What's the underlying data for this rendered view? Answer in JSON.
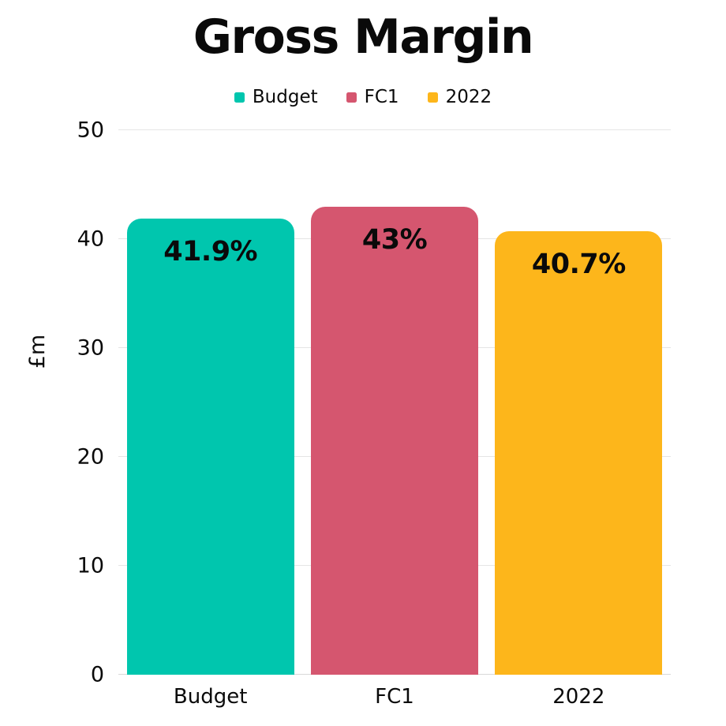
{
  "title": "Gross Margin",
  "colors": {
    "teal": "#00C6AE",
    "pink": "#D5566F",
    "yellow": "#FDB61B",
    "grid": "#E5E5E5",
    "baseline": "#D9D9D9",
    "text": "#0A0A0A",
    "background": "#FFFFFF"
  },
  "legend": [
    {
      "label": "Budget",
      "color": "#00C6AE"
    },
    {
      "label": "FC1",
      "color": "#D5566F"
    },
    {
      "label": "2022",
      "color": "#FDB61B"
    }
  ],
  "chart_data": {
    "type": "bar",
    "title": "Gross Margin",
    "categories": [
      "Budget",
      "FC1",
      "2022"
    ],
    "values": [
      41.9,
      43,
      40.7
    ],
    "value_labels": [
      "41.9%",
      "43%",
      "40.7%"
    ],
    "bar_colors": [
      "#00C6AE",
      "#D5566F",
      "#FDB61B"
    ],
    "xlabel": "",
    "ylabel": "£m",
    "ylim": [
      0,
      50
    ],
    "yticks": [
      0,
      10,
      20,
      30,
      40,
      50
    ],
    "grid": "horizontal",
    "legend_position": "top"
  }
}
